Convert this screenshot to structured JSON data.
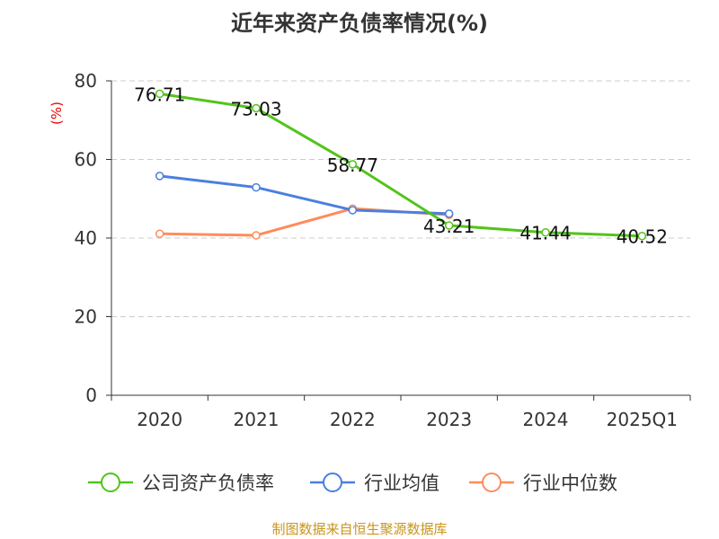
{
  "chart_data": {
    "type": "line",
    "title": "近年来资产负债率情况(%)",
    "ylabel": "(%)",
    "xlabel": "",
    "categories": [
      "2020",
      "2021",
      "2022",
      "2023",
      "2024",
      "2025Q1"
    ],
    "ylim": [
      0,
      80
    ],
    "yticks": [
      0,
      20,
      40,
      60,
      80
    ],
    "grid": true,
    "legend_position": "bottom",
    "series": [
      {
        "name": "公司资产负债率",
        "color": "#52c41a",
        "values": [
          76.71,
          73.03,
          58.77,
          43.21,
          41.44,
          40.52
        ],
        "labels": [
          "76.71",
          "73.03",
          "58.77",
          "43.21",
          "41.44",
          "40.52"
        ]
      },
      {
        "name": "行业均值",
        "color": "#4a7fe0",
        "values": [
          55.8,
          52.9,
          47.1,
          46.2,
          null,
          null
        ]
      },
      {
        "name": "行业中位数",
        "color": "#ff8c5a",
        "values": [
          41.1,
          40.7,
          47.5,
          45.9,
          null,
          null
        ]
      }
    ]
  },
  "source": "制图数据来自恒生聚源数据库"
}
